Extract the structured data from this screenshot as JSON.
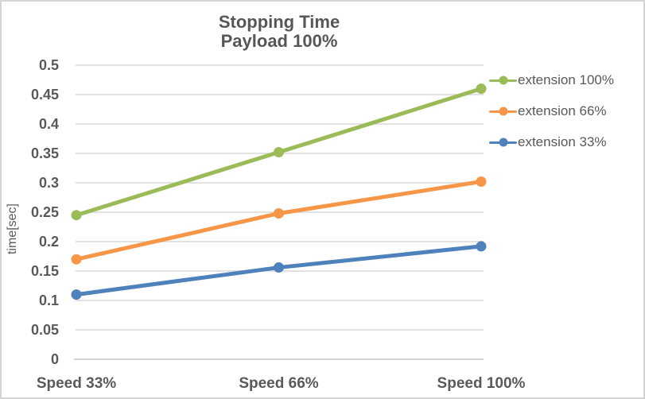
{
  "chart_data": {
    "type": "line",
    "title_line1": "Stopping Time",
    "title_line2": "Payload 100%",
    "ylabel": "time[sec]",
    "xlabel": "",
    "categories": [
      "Speed 33%",
      "Speed 66%",
      "Speed 100%"
    ],
    "series": [
      {
        "name": "extension 100%",
        "color": "#9BBB59",
        "values": [
          0.245,
          0.352,
          0.46
        ]
      },
      {
        "name": "extension 66%",
        "color": "#F79646",
        "values": [
          0.17,
          0.248,
          0.302
        ]
      },
      {
        "name": "extension 33%",
        "color": "#4F81BD",
        "values": [
          0.11,
          0.156,
          0.192
        ]
      }
    ],
    "ylim": [
      0,
      0.5
    ],
    "y_ticks": [
      "0",
      "0.05",
      "0.1",
      "0.15",
      "0.2",
      "0.25",
      "0.3",
      "0.35",
      "0.4",
      "0.45",
      "0.5"
    ],
    "grid": "horizontal",
    "legend_position": "right",
    "colors": {
      "text": "#595959",
      "grid": "#D9D9D9",
      "axis": "#C3C3C3",
      "border": "#D5D5D5",
      "background": "#FFFFFF"
    }
  }
}
